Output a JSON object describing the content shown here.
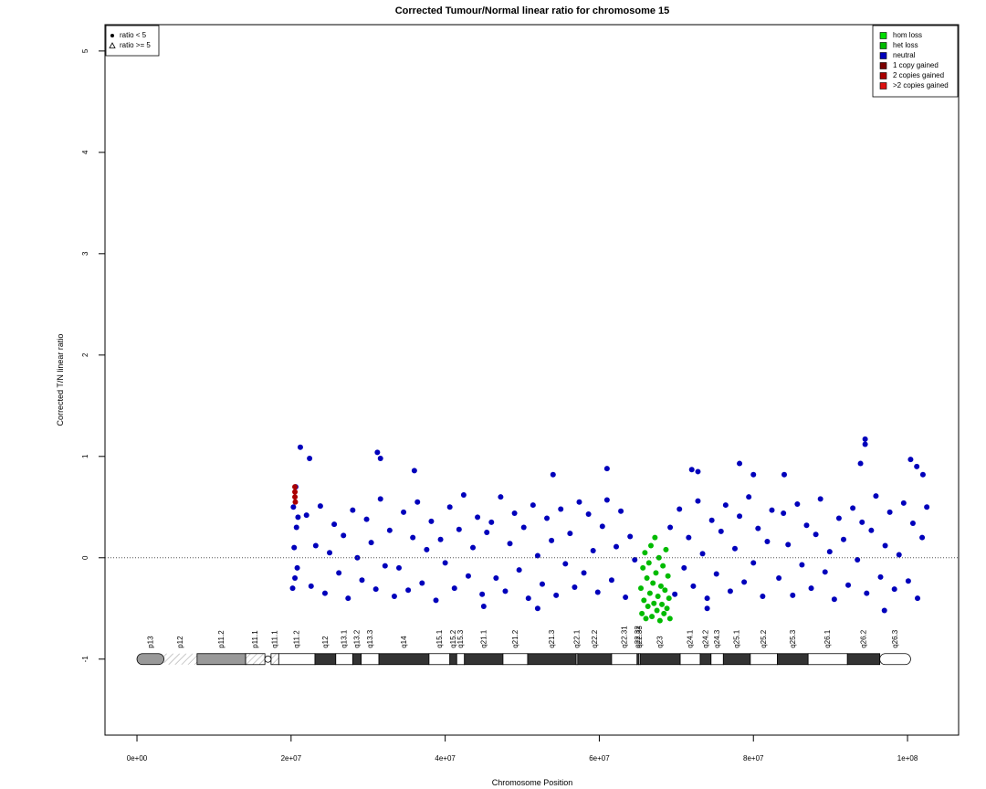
{
  "chart_data": {
    "type": "scatter",
    "title": "Corrected Tumour/Normal linear ratio for chromosome  15",
    "x_label": "Chromosome Position",
    "y_label": "Corrected T/N linear ratio",
    "xlim": [
      -4150000.0,
      106630000.0
    ],
    "ylim": [
      -1.75,
      5.26
    ],
    "xticks": [
      {
        "value": 0,
        "label": "0e+00"
      },
      {
        "value": 20000000.0,
        "label": "2e+07"
      },
      {
        "value": 40000000.0,
        "label": "4e+07"
      },
      {
        "value": 60000000.0,
        "label": "6e+07"
      },
      {
        "value": 80000000.0,
        "label": "8e+07"
      },
      {
        "value": 100000000.0,
        "label": "1e+08"
      }
    ],
    "yticks": [
      -1,
      0,
      1,
      2,
      3,
      4,
      5
    ],
    "hline": 0,
    "legend": "top-right",
    "shape_legend": [
      "ratio < 5",
      "ratio >= 5"
    ],
    "ideogram_y": -1,
    "bands": [
      {
        "name": "p13",
        "start": 0,
        "end": 3500000.0,
        "stain": "gpos50"
      },
      {
        "name": "p12",
        "start": 3500000.0,
        "end": 7800000.0,
        "stain": "stalk"
      },
      {
        "name": "p11.2",
        "start": 7800000.0,
        "end": 14100000.0,
        "stain": "gpos50"
      },
      {
        "name": "p11.1",
        "start": 14100000.0,
        "end": 16600000.0,
        "stain": "acen"
      },
      {
        "name": "q11.1",
        "start": 17400000.0,
        "end": 18400000.0,
        "stain": "acen"
      },
      {
        "name": "q11.2",
        "start": 18400000.0,
        "end": 23100000.0,
        "stain": "gneg"
      },
      {
        "name": "q12",
        "start": 23100000.0,
        "end": 25800000.0,
        "stain": "gpos100"
      },
      {
        "name": "q13.1",
        "start": 25800000.0,
        "end": 28000000.0,
        "stain": "gneg"
      },
      {
        "name": "q13.2",
        "start": 28000000.0,
        "end": 29100000.0,
        "stain": "gpos100"
      },
      {
        "name": "q13.3",
        "start": 29100000.0,
        "end": 31400000.0,
        "stain": "gneg"
      },
      {
        "name": "q14",
        "start": 31400000.0,
        "end": 37900000.0,
        "stain": "gpos100"
      },
      {
        "name": "q15.1",
        "start": 37900000.0,
        "end": 40600000.0,
        "stain": "gneg"
      },
      {
        "name": "q15.2",
        "start": 40600000.0,
        "end": 41500000.0,
        "stain": "gpos100"
      },
      {
        "name": "q15.3",
        "start": 41500000.0,
        "end": 42500000.0,
        "stain": "gneg"
      },
      {
        "name": "q21.1",
        "start": 42500000.0,
        "end": 47500000.0,
        "stain": "gpos100"
      },
      {
        "name": "q21.2",
        "start": 47500000.0,
        "end": 50700000.0,
        "stain": "gneg"
      },
      {
        "name": "q21.3",
        "start": 50700000.0,
        "end": 57000000.0,
        "stain": "gpos100"
      },
      {
        "name": "q22.1",
        "start": 57000000.0,
        "end": 57200000.0,
        "stain": "gneg"
      },
      {
        "name": "q22.2",
        "start": 57200000.0,
        "end": 61600000.0,
        "stain": "gpos100"
      },
      {
        "name": "q22.31",
        "start": 61600000.0,
        "end": 64900000.0,
        "stain": "gneg"
      },
      {
        "name": "q22.32",
        "start": 64900000.0,
        "end": 65100000.0,
        "stain": "gpos100"
      },
      {
        "name": "q22.33",
        "start": 65100000.0,
        "end": 65300000.0,
        "stain": "gneg"
      },
      {
        "name": "q23",
        "start": 65300000.0,
        "end": 70500000.0,
        "stain": "gpos100"
      },
      {
        "name": "q24.1",
        "start": 70500000.0,
        "end": 73100000.0,
        "stain": "gneg"
      },
      {
        "name": "q24.2",
        "start": 73100000.0,
        "end": 74500000.0,
        "stain": "gpos100"
      },
      {
        "name": "q24.3",
        "start": 74500000.0,
        "end": 76100000.0,
        "stain": "gneg"
      },
      {
        "name": "q25.1",
        "start": 76100000.0,
        "end": 79600000.0,
        "stain": "gpos100"
      },
      {
        "name": "q25.2",
        "start": 79600000.0,
        "end": 83100000.0,
        "stain": "gneg"
      },
      {
        "name": "q25.3",
        "start": 83100000.0,
        "end": 87100000.0,
        "stain": "gpos100"
      },
      {
        "name": "q26.1",
        "start": 87100000.0,
        "end": 92200000.0,
        "stain": "gneg"
      },
      {
        "name": "q26.2",
        "start": 92200000.0,
        "end": 96400000.0,
        "stain": "gpos100"
      },
      {
        "name": "q26.3",
        "start": 96400000.0,
        "end": 100400000.0,
        "stain": "gneg"
      }
    ],
    "series": [
      {
        "name": "hom loss",
        "color": "#00dd00",
        "x": [],
        "values": []
      },
      {
        "name": "het loss",
        "color": "#00bb00",
        "x": [
          65400000.0,
          65530000.0,
          65660000.0,
          65790000.0,
          65920000.0,
          66050000.0,
          66180000.0,
          66310000.0,
          66440000.0,
          66570000.0,
          66700000.0,
          66830000.0,
          66960000.0,
          67090000.0,
          67220000.0,
          67350000.0,
          67480000.0,
          67610000.0,
          67740000.0,
          67870000.0,
          68000000.0,
          68130000.0,
          68260000.0,
          68390000.0,
          68520000.0,
          68650000.0,
          68780000.0,
          68910000.0,
          69040000.0,
          69170000.0
        ],
        "values": [
          -0.3,
          -0.55,
          -0.1,
          -0.42,
          0.05,
          -0.6,
          -0.2,
          -0.48,
          -0.05,
          -0.35,
          0.12,
          -0.58,
          -0.25,
          -0.45,
          0.2,
          -0.15,
          -0.52,
          -0.38,
          0.0,
          -0.62,
          -0.28,
          -0.46,
          -0.08,
          -0.55,
          -0.32,
          0.08,
          -0.5,
          -0.18,
          -0.4,
          -0.6
        ]
      },
      {
        "name": "neutral",
        "color": "#0000bb",
        "x": [
          20200000.0,
          20300000.0,
          20400000.0,
          20500000.0,
          20600000.0,
          20700000.0,
          20800000.0,
          20900000.0,
          22000000.0,
          22600000.0,
          23200000.0,
          23800000.0,
          24400000.0,
          25000000.0,
          25600000.0,
          26200000.0,
          26800000.0,
          27400000.0,
          28000000.0,
          28600000.0,
          29200000.0,
          29800000.0,
          30400000.0,
          31000000.0,
          31600000.0,
          32200000.0,
          32800000.0,
          33400000.0,
          34000000.0,
          34600000.0,
          35200000.0,
          35800000.0,
          36400000.0,
          37000000.0,
          37600000.0,
          38200000.0,
          38800000.0,
          39400000.0,
          40000000.0,
          40600000.0,
          41200000.0,
          41800000.0,
          42400000.0,
          43000000.0,
          43600000.0,
          44200000.0,
          44800000.0,
          45400000.0,
          46000000.0,
          46600000.0,
          47200000.0,
          47800000.0,
          48400000.0,
          49000000.0,
          49600000.0,
          50200000.0,
          50800000.0,
          51400000.0,
          52000000.0,
          52600000.0,
          53200000.0,
          53800000.0,
          54400000.0,
          55000000.0,
          55600000.0,
          56200000.0,
          56800000.0,
          57400000.0,
          58000000.0,
          58600000.0,
          59200000.0,
          59800000.0,
          60400000.0,
          61000000.0,
          61600000.0,
          62200000.0,
          62800000.0,
          63400000.0,
          64000000.0,
          64600000.0,
          21200000.0,
          22400000.0,
          31200000.0,
          31600000.0,
          36000000.0,
          54000000.0,
          61000000.0,
          45000000.0,
          52000000.0,
          69200000.0,
          69800000.0,
          70400000.0,
          71000000.0,
          71600000.0,
          72200000.0,
          72800000.0,
          73400000.0,
          74000000.0,
          74600000.0,
          75200000.0,
          75800000.0,
          76400000.0,
          77000000.0,
          77600000.0,
          78200000.0,
          78800000.0,
          79400000.0,
          80000000.0,
          80600000.0,
          81200000.0,
          81800000.0,
          82400000.0,
          72000000.0,
          72800000.0,
          78200000.0,
          80000000.0,
          74000000.0,
          83300000.0,
          83900000.0,
          84500000.0,
          85100000.0,
          85700000.0,
          86300000.0,
          86900000.0,
          87500000.0,
          88100000.0,
          88700000.0,
          89300000.0,
          89900000.0,
          90500000.0,
          91100000.0,
          91700000.0,
          92300000.0,
          92900000.0,
          93500000.0,
          94100000.0,
          94700000.0,
          95300000.0,
          95900000.0,
          96500000.0,
          97100000.0,
          97700000.0,
          98300000.0,
          98900000.0,
          99500000.0,
          100100000.0,
          100700000.0,
          101300000.0,
          101900000.0,
          102500000.0,
          84000000.0,
          93900000.0,
          94500000.0,
          94500000.0,
          100400000.0,
          101200000.0,
          97000000.0,
          102000000.0
        ],
        "values": [
          -0.3,
          0.5,
          0.1,
          -0.2,
          0.7,
          0.3,
          -0.1,
          0.4,
          0.42,
          -0.28,
          0.12,
          0.51,
          -0.35,
          0.05,
          0.33,
          -0.15,
          0.22,
          -0.4,
          0.47,
          0.0,
          -0.22,
          0.38,
          0.15,
          -0.31,
          0.58,
          -0.08,
          0.27,
          -0.38,
          -0.1,
          0.45,
          -0.32,
          0.2,
          0.55,
          -0.25,
          0.08,
          0.36,
          -0.42,
          0.18,
          -0.05,
          0.5,
          -0.3,
          0.28,
          0.62,
          -0.18,
          0.1,
          0.4,
          -0.36,
          0.25,
          0.35,
          -0.2,
          0.6,
          -0.33,
          0.14,
          0.44,
          -0.12,
          0.3,
          -0.4,
          0.52,
          0.02,
          -0.26,
          0.39,
          0.17,
          -0.37,
          0.48,
          -0.06,
          0.24,
          -0.29,
          0.55,
          -0.15,
          0.43,
          0.07,
          -0.34,
          0.31,
          0.57,
          -0.22,
          0.11,
          0.46,
          -0.39,
          0.21,
          -0.02,
          1.09,
          0.98,
          1.04,
          0.98,
          0.86,
          0.82,
          0.88,
          -0.48,
          -0.5,
          0.3,
          -0.36,
          0.48,
          -0.1,
          0.2,
          -0.28,
          0.56,
          0.04,
          -0.4,
          0.37,
          -0.16,
          0.26,
          0.52,
          -0.33,
          0.09,
          0.41,
          -0.24,
          0.6,
          -0.05,
          0.29,
          -0.38,
          0.16,
          0.47,
          0.87,
          0.85,
          0.93,
          0.82,
          -0.5,
          -0.2,
          0.44,
          0.13,
          -0.37,
          0.53,
          -0.07,
          0.32,
          -0.3,
          0.23,
          0.58,
          -0.14,
          0.06,
          -0.41,
          0.39,
          0.18,
          -0.27,
          0.49,
          -0.02,
          0.35,
          -0.35,
          0.27,
          0.61,
          -0.19,
          0.12,
          0.45,
          -0.31,
          0.03,
          0.54,
          -0.23,
          0.34,
          -0.4,
          0.2,
          0.5,
          0.82,
          0.93,
          1.17,
          1.12,
          0.97,
          0.9,
          -0.52,
          0.82
        ]
      },
      {
        "name": "1 copy gained",
        "color": "#7a0000",
        "x": [],
        "values": []
      },
      {
        "name": "2 copies gained",
        "color": "#aa0000",
        "x": [
          20500000.0,
          20500000.0,
          20550000.0,
          20500000.0
        ],
        "values": [
          0.6,
          0.65,
          0.55,
          0.7
        ]
      },
      {
        "name": ">2 copies gained",
        "color": "#dd1111",
        "x": [],
        "values": []
      }
    ]
  }
}
